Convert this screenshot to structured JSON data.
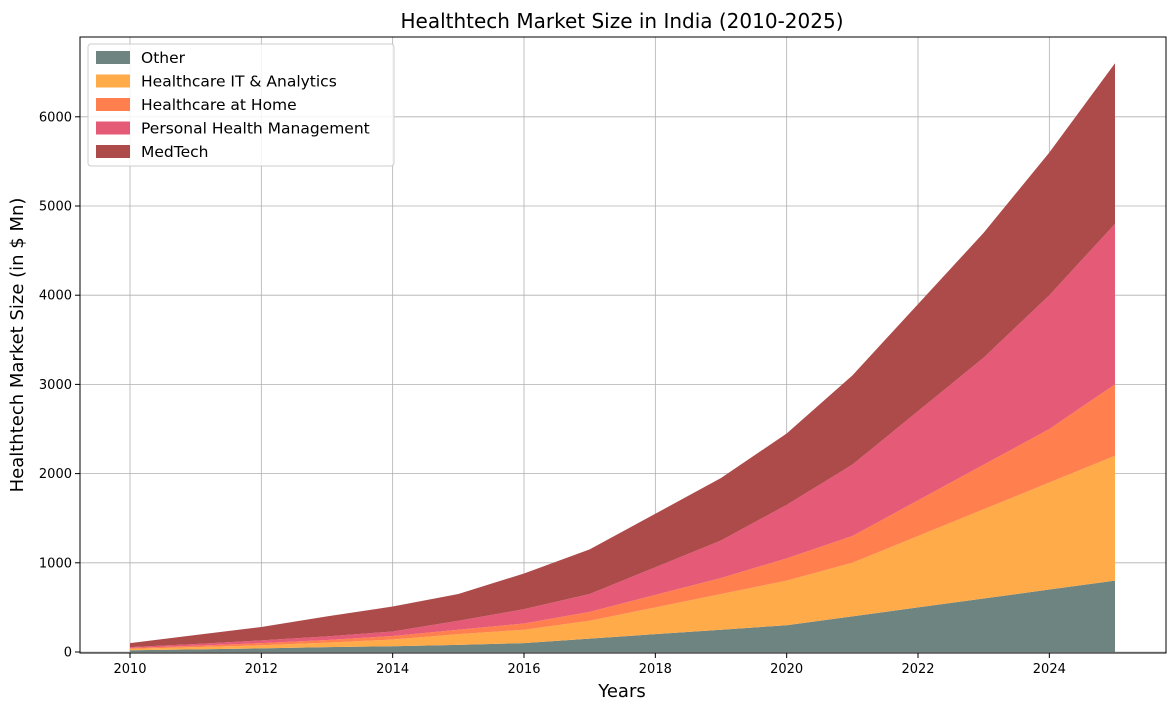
{
  "chart_data": {
    "type": "area",
    "stacked": true,
    "title": "Healthtech Market Size in India (2010-2025)",
    "xlabel": "Years",
    "ylabel": "Healthtech Market Size (in $ Mn)",
    "x": [
      2010,
      2011,
      2012,
      2013,
      2014,
      2015,
      2016,
      2017,
      2018,
      2019,
      2020,
      2021,
      2022,
      2023,
      2024,
      2025
    ],
    "xlim": [
      2010,
      2025
    ],
    "ylim": [
      0,
      6600
    ],
    "xticks": [
      2010,
      2012,
      2014,
      2016,
      2018,
      2020,
      2022,
      2024
    ],
    "yticks": [
      0,
      1000,
      2000,
      3000,
      4000,
      5000,
      6000
    ],
    "grid": true,
    "legend_position": "top-left",
    "series": [
      {
        "name": "Other",
        "color": "#6e8480",
        "values": [
          20,
          30,
          40,
          55,
          65,
          80,
          100,
          150,
          200,
          250,
          300,
          400,
          500,
          600,
          700,
          800
        ]
      },
      {
        "name": "Healthcare IT & Analytics",
        "color": "#ffab4a",
        "values": [
          15,
          25,
          35,
          50,
          75,
          120,
          150,
          200,
          300,
          400,
          500,
          600,
          800,
          1000,
          1200,
          1400
        ]
      },
      {
        "name": "Healthcare at Home",
        "color": "#ff7f4f",
        "values": [
          10,
          15,
          25,
          30,
          40,
          50,
          70,
          100,
          140,
          180,
          250,
          300,
          400,
          500,
          600,
          800
        ]
      },
      {
        "name": "Personal Health Management",
        "color": "#e55a77",
        "values": [
          10,
          20,
          30,
          40,
          50,
          100,
          160,
          200,
          310,
          420,
          600,
          800,
          1000,
          1200,
          1500,
          1800
        ]
      },
      {
        "name": "MedTech",
        "color": "#ad4a4a",
        "values": [
          45,
          100,
          150,
          225,
          280,
          300,
          400,
          500,
          600,
          700,
          800,
          1000,
          1200,
          1400,
          1600,
          1800
        ]
      }
    ]
  }
}
